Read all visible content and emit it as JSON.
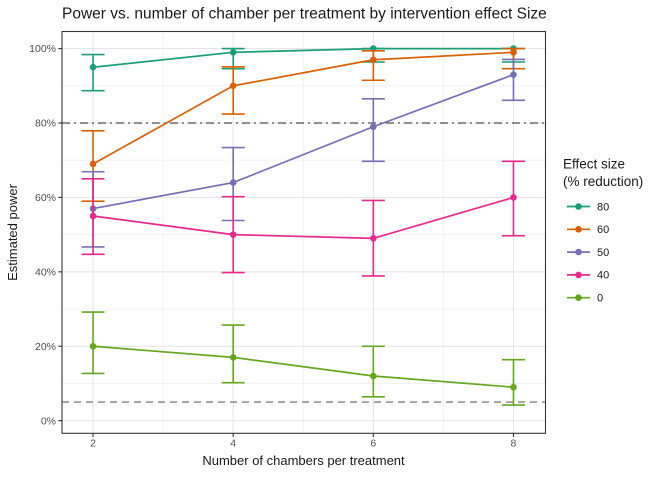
{
  "chart_data": {
    "type": "line",
    "title": "Power vs. number of chamber per treatment by intervention effect Size",
    "xlabel": "Number of chambers per treatment",
    "ylabel": "Estimated power",
    "x": [
      2,
      4,
      6,
      8
    ],
    "x_tick_labels": [
      "2",
      "4",
      "6",
      "8"
    ],
    "x_major_ticks": [
      2,
      4,
      6,
      8
    ],
    "x_minor_ticks": [
      3,
      5,
      7
    ],
    "y_major_ticks": [
      0,
      20,
      40,
      60,
      80,
      100
    ],
    "y_minor_ticks": [
      10,
      30,
      50,
      70,
      90
    ],
    "y_tick_labels": [
      "0%",
      "20%",
      "40%",
      "60%",
      "80%",
      "100%"
    ],
    "xlim": [
      1.557,
      8.457
    ],
    "ylim": [
      -3.4,
      104.6
    ],
    "grid": true,
    "panel_border": true,
    "background_color": "#ffffff",
    "gridline_color_major": "#e3e3e3",
    "gridline_color_minor": "#f0f0f0",
    "reference_lines": [
      {
        "y": 80,
        "style": "dashdot",
        "color": "#4d4d4d"
      },
      {
        "y": 5,
        "style": "dashed",
        "color": "#7f7f7f"
      }
    ],
    "legend": {
      "position": "right",
      "title_line1": "Effect size",
      "title_line2": "(% reduction)",
      "entries": [
        "80",
        "60",
        "50",
        "40",
        "0"
      ]
    },
    "series": [
      {
        "name": "80",
        "color": "#1B9E77",
        "x": [
          2,
          4,
          6,
          8
        ],
        "y": [
          95,
          99,
          100,
          100
        ],
        "y_low": [
          88.7,
          94.6,
          96.4,
          96.4
        ],
        "y_high": [
          98.4,
          100,
          100,
          100
        ]
      },
      {
        "name": "60",
        "color": "#D95F02",
        "x": [
          2,
          4,
          6,
          8
        ],
        "y": [
          69,
          90,
          97,
          99
        ],
        "y_low": [
          59.0,
          82.4,
          91.5,
          94.6
        ],
        "y_high": [
          77.9,
          95.1,
          99.4,
          100
        ]
      },
      {
        "name": "50",
        "color": "#7570B3",
        "x": [
          2,
          4,
          6,
          8
        ],
        "y": [
          57,
          64,
          79,
          93
        ],
        "y_low": [
          46.7,
          53.8,
          69.7,
          86.1
        ],
        "y_high": [
          66.9,
          73.4,
          86.5,
          97.1
        ]
      },
      {
        "name": "40",
        "color": "#E7298A",
        "x": [
          2,
          4,
          6,
          8
        ],
        "y": [
          55,
          50,
          49,
          60
        ],
        "y_low": [
          44.7,
          39.8,
          38.9,
          49.7
        ],
        "y_high": [
          65.0,
          60.2,
          59.2,
          69.7
        ]
      },
      {
        "name": "0",
        "color": "#66A61E",
        "x": [
          2,
          4,
          6,
          8
        ],
        "y": [
          20,
          17,
          12,
          9
        ],
        "y_low": [
          12.7,
          10.2,
          6.4,
          4.2
        ],
        "y_high": [
          29.2,
          25.7,
          20.0,
          16.4
        ]
      }
    ]
  }
}
